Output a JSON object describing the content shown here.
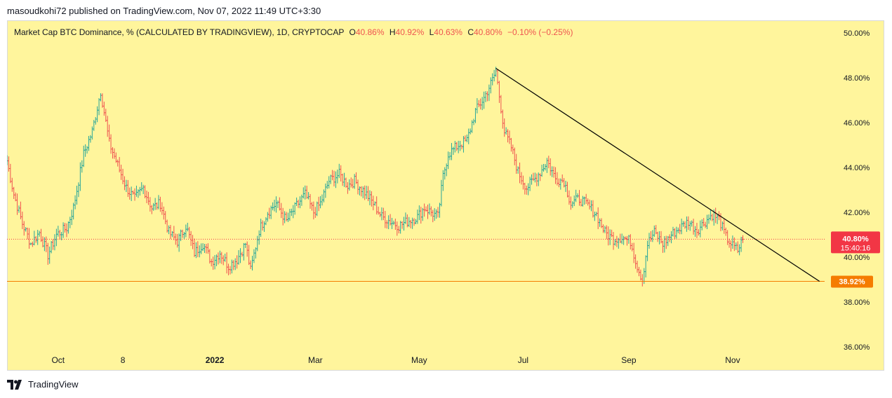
{
  "header": {
    "published": "masoudkohi72 published on TradingView.com, Nov 07, 2022 11:49 UTC+3:30"
  },
  "footer": {
    "brand": "TradingView",
    "logo_icon": "tradingview-logo-icon"
  },
  "legend": {
    "symbol": "Market Cap BTC Dominance, % (CALCULATED BY TRADINGVIEW), 1D, CRYPTOCAP",
    "o_label": "O",
    "o_value": "40.86%",
    "h_label": "H",
    "h_value": "40.92%",
    "l_label": "L",
    "l_value": "40.63%",
    "c_label": "C",
    "c_value": "40.80%",
    "change": "−0.10% (−0.25%)"
  },
  "colors": {
    "background": "#fff59c",
    "up": "#26a69a",
    "down": "#ef5350",
    "trendline": "#000000",
    "support": "#f57c00",
    "price_tag": "#f23645",
    "support_tag": "#f57c00"
  },
  "chart_data": {
    "type": "ohlc",
    "title": "Market Cap BTC Dominance, % (CALCULATED BY TRADINGVIEW), 1D, CRYPTOCAP",
    "y_unit": "%",
    "ylim": [
      36,
      50.5
    ],
    "y_ticks": [
      "50.00%",
      "48.00%",
      "46.00%",
      "44.00%",
      "42.00%",
      "40.00%",
      "38.00%",
      "36.00%"
    ],
    "y_tick_values": [
      50,
      48,
      46,
      44,
      42,
      40,
      38,
      36
    ],
    "x_range": [
      "2021-09-01",
      "2022-12-25"
    ],
    "x_ticks": [
      {
        "label": "Oct",
        "date": "2021-10-01"
      },
      {
        "label": "8",
        "date": "2021-11-08"
      },
      {
        "label": "2022",
        "date": "2022-01-01",
        "bold": true
      },
      {
        "label": "Mar",
        "date": "2022-03-01"
      },
      {
        "label": "May",
        "date": "2022-05-01"
      },
      {
        "label": "Jul",
        "date": "2022-07-01"
      },
      {
        "label": "Sep",
        "date": "2022-09-01"
      },
      {
        "label": "Nov",
        "date": "2022-11-01"
      }
    ],
    "close_path": [
      [
        "2021-09-01",
        44.3
      ],
      [
        "2021-09-05",
        42.8
      ],
      [
        "2021-09-10",
        41.5
      ],
      [
        "2021-09-15",
        40.6
      ],
      [
        "2021-09-20",
        41.1
      ],
      [
        "2021-09-25",
        40.1
      ],
      [
        "2021-09-30",
        41.0
      ],
      [
        "2021-10-06",
        41.3
      ],
      [
        "2021-10-10",
        42.2
      ],
      [
        "2021-10-16",
        44.6
      ],
      [
        "2021-10-21",
        45.6
      ],
      [
        "2021-10-26",
        47.4
      ],
      [
        "2021-10-31",
        45.1
      ],
      [
        "2021-11-05",
        44.1
      ],
      [
        "2021-11-10",
        43.1
      ],
      [
        "2021-11-15",
        42.6
      ],
      [
        "2021-11-20",
        43.1
      ],
      [
        "2021-11-25",
        42.2
      ],
      [
        "2021-11-30",
        42.4
      ],
      [
        "2021-12-05",
        41.1
      ],
      [
        "2021-12-10",
        40.7
      ],
      [
        "2021-12-15",
        41.4
      ],
      [
        "2021-12-20",
        40.2
      ],
      [
        "2021-12-25",
        40.6
      ],
      [
        "2021-12-30",
        39.8
      ],
      [
        "2022-01-04",
        40.2
      ],
      [
        "2022-01-09",
        39.6
      ],
      [
        "2022-01-14",
        39.9
      ],
      [
        "2022-01-19",
        40.6
      ],
      [
        "2022-01-22",
        39.4
      ],
      [
        "2022-01-27",
        41.2
      ],
      [
        "2022-02-01",
        42.0
      ],
      [
        "2022-02-06",
        42.4
      ],
      [
        "2022-02-12",
        41.6
      ],
      [
        "2022-02-18",
        42.3
      ],
      [
        "2022-02-23",
        42.8
      ],
      [
        "2022-02-28",
        42.0
      ],
      [
        "2022-03-04",
        42.4
      ],
      [
        "2022-03-09",
        43.4
      ],
      [
        "2022-03-15",
        43.7
      ],
      [
        "2022-03-20",
        43.2
      ],
      [
        "2022-03-24",
        43.4
      ],
      [
        "2022-03-30",
        42.9
      ],
      [
        "2022-04-04",
        42.4
      ],
      [
        "2022-04-09",
        41.8
      ],
      [
        "2022-04-14",
        41.6
      ],
      [
        "2022-04-19",
        41.4
      ],
      [
        "2022-04-24",
        41.6
      ],
      [
        "2022-04-30",
        41.8
      ],
      [
        "2022-05-04",
        42.2
      ],
      [
        "2022-05-08",
        42.0
      ],
      [
        "2022-05-12",
        41.8
      ],
      [
        "2022-05-15",
        43.6
      ],
      [
        "2022-05-18",
        44.6
      ],
      [
        "2022-05-24",
        45.0
      ],
      [
        "2022-05-29",
        45.2
      ],
      [
        "2022-06-03",
        46.5
      ],
      [
        "2022-06-08",
        47.1
      ],
      [
        "2022-06-13",
        47.9
      ],
      [
        "2022-06-15",
        48.3
      ],
      [
        "2022-06-17",
        47.2
      ],
      [
        "2022-06-20",
        45.6
      ],
      [
        "2022-06-24",
        44.9
      ],
      [
        "2022-06-28",
        43.8
      ],
      [
        "2022-07-03",
        43.1
      ],
      [
        "2022-07-08",
        43.5
      ],
      [
        "2022-07-12",
        43.9
      ],
      [
        "2022-07-15",
        44.3
      ],
      [
        "2022-07-20",
        43.5
      ],
      [
        "2022-07-25",
        43.4
      ],
      [
        "2022-07-29",
        42.4
      ],
      [
        "2022-08-03",
        42.6
      ],
      [
        "2022-08-08",
        42.3
      ],
      [
        "2022-08-13",
        41.9
      ],
      [
        "2022-08-18",
        41.1
      ],
      [
        "2022-08-23",
        40.8
      ],
      [
        "2022-08-28",
        40.9
      ],
      [
        "2022-09-02",
        40.7
      ],
      [
        "2022-09-06",
        39.6
      ],
      [
        "2022-09-09",
        39.0
      ],
      [
        "2022-09-12",
        40.6
      ],
      [
        "2022-09-16",
        41.1
      ],
      [
        "2022-09-21",
        40.6
      ],
      [
        "2022-09-26",
        41.0
      ],
      [
        "2022-10-01",
        41.3
      ],
      [
        "2022-10-06",
        41.6
      ],
      [
        "2022-10-11",
        41.2
      ],
      [
        "2022-10-16",
        41.6
      ],
      [
        "2022-10-20",
        41.9
      ],
      [
        "2022-10-24",
        41.7
      ],
      [
        "2022-10-28",
        40.9
      ],
      [
        "2022-11-01",
        40.5
      ],
      [
        "2022-11-04",
        40.3
      ],
      [
        "2022-11-07",
        40.8
      ]
    ],
    "last_bar": {
      "date": "2022-11-07",
      "open": 40.86,
      "high": 40.92,
      "low": 40.63,
      "close": 40.8
    },
    "trendline": {
      "from": {
        "date": "2022-06-15",
        "value": 48.42
      },
      "to": {
        "date": "2022-12-22",
        "value": 38.92
      }
    },
    "support_line": {
      "value": 38.92,
      "label": "38.92%"
    },
    "last_price": {
      "value": 40.8,
      "label": "40.80%",
      "countdown": "15:40:16"
    }
  }
}
